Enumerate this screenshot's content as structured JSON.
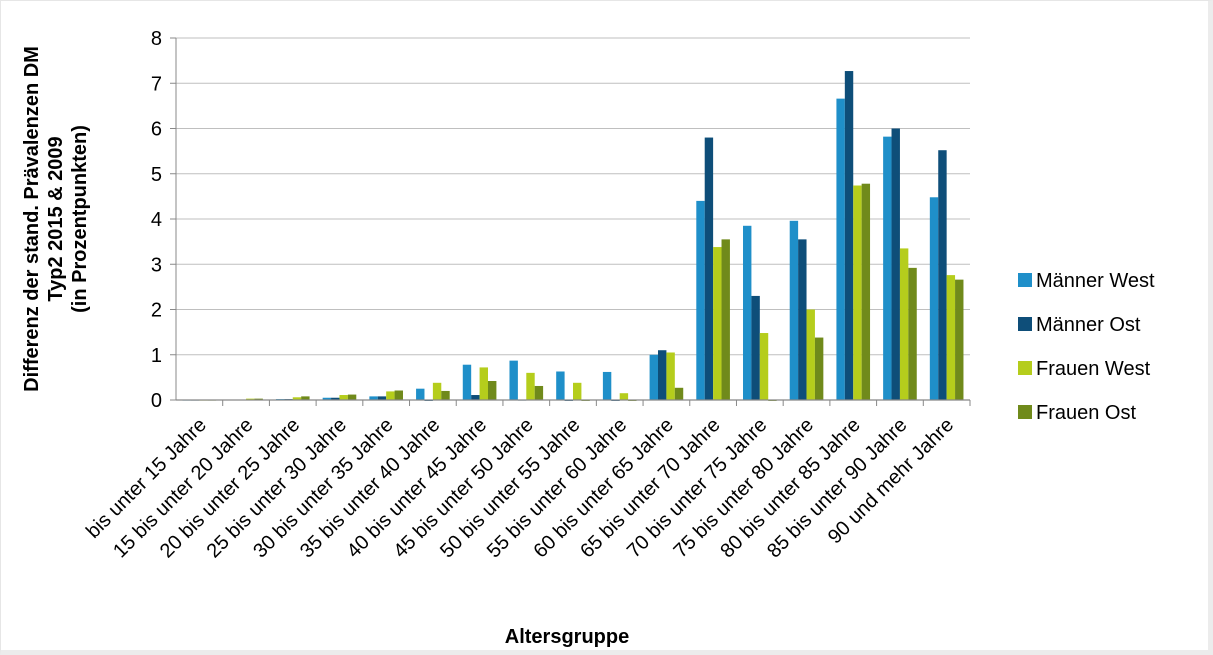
{
  "chart_data": {
    "type": "bar",
    "title": "",
    "xlabel": "Altersgruppe",
    "ylabel": [
      "Differenz der stand. Prävalenzen DM",
      "Typ2 2015 & 2009",
      "(in Prozentpunkten)"
    ],
    "ylim": [
      0,
      8
    ],
    "yticks": [
      "0",
      "1",
      "2",
      "3",
      "4",
      "5",
      "6",
      "7",
      "8"
    ],
    "grid": "horizontal",
    "legend_position": "right",
    "categories": [
      "bis unter 15 Jahre",
      "15 bis unter 20 Jahre",
      "20 bis unter 25 Jahre",
      "25 bis unter 30 Jahre",
      "30 bis unter 35 Jahre",
      "35 bis unter 40 Jahre",
      "40 bis unter 45 Jahre",
      "45 bis unter 50 Jahre",
      "50 bis unter 55 Jahre",
      "55 bis unter 60 Jahre",
      "60 bis unter 65 Jahre",
      "65 bis unter 70 Jahre",
      "70 bis unter 75 Jahre",
      "75 bis unter 80 Jahre",
      "80 bis unter 85 Jahre",
      "85 bis unter 90 Jahre",
      "90 und mehr Jahre"
    ],
    "series": [
      {
        "name": "Männer West",
        "color": "#1f8fc9",
        "values": [
          0,
          0.01,
          0.02,
          0.05,
          0.08,
          0.25,
          0.78,
          0.87,
          0.63,
          0.62,
          1.0,
          4.4,
          3.85,
          3.96,
          6.66,
          5.82,
          4.48
        ]
      },
      {
        "name": "Männer Ost",
        "color": "#0e4e79",
        "values": [
          0,
          0.01,
          0.02,
          0.05,
          0.08,
          -0.02,
          0.11,
          0.0,
          -0.02,
          -0.02,
          1.1,
          5.8,
          2.3,
          3.55,
          7.27,
          6.0,
          5.52
        ]
      },
      {
        "name": "Frauen West",
        "color": "#b5cd1c",
        "values": [
          0,
          0.03,
          0.06,
          0.11,
          0.19,
          0.38,
          0.72,
          0.6,
          0.38,
          0.15,
          1.05,
          3.38,
          1.48,
          2.0,
          4.74,
          3.35,
          2.76
        ]
      },
      {
        "name": "Frauen Ost",
        "color": "#708a1b",
        "values": [
          0,
          0.03,
          0.08,
          0.12,
          0.21,
          0.2,
          0.42,
          0.31,
          -0.02,
          -0.02,
          0.27,
          3.55,
          -0.02,
          1.38,
          4.78,
          2.92,
          2.66
        ]
      }
    ]
  }
}
